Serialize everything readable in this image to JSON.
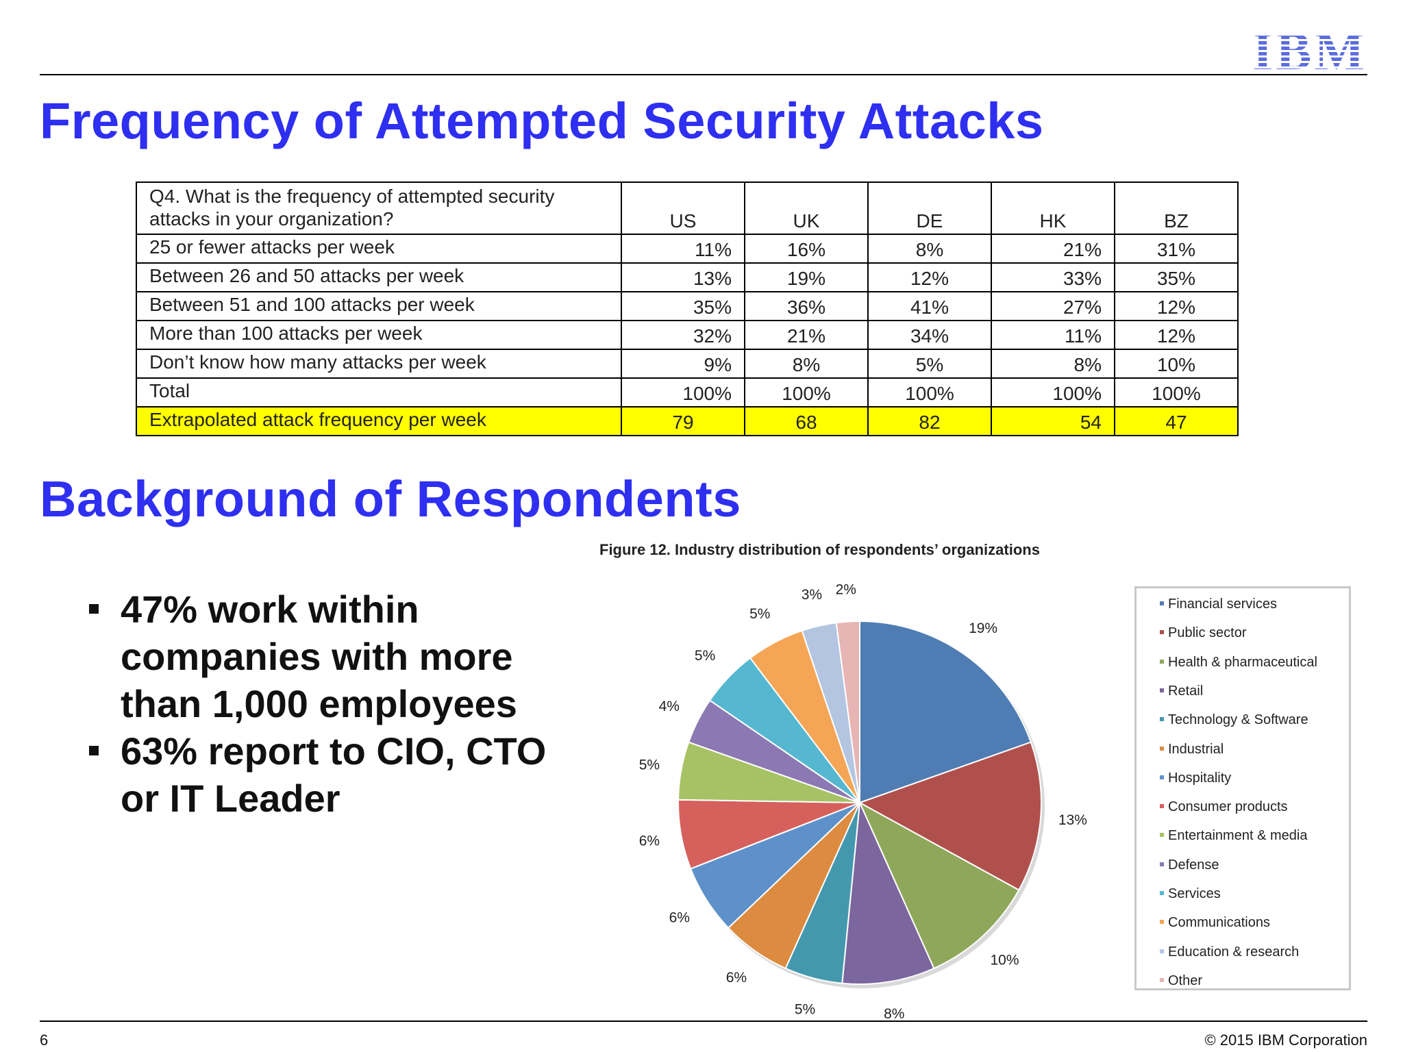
{
  "logo": "IBM",
  "title1": "Frequency of Attempted Security Attacks",
  "table": {
    "question": "Q4. What is the frequency of attempted security attacks in your organization?",
    "columns": [
      "US",
      "UK",
      "DE",
      "HK",
      "BZ"
    ],
    "rows": [
      {
        "label": "25 or fewer attacks per week",
        "values": [
          "11%",
          "16%",
          "8%",
          "21%",
          "31%"
        ]
      },
      {
        "label": "Between 26 and 50 attacks per week",
        "values": [
          "13%",
          "19%",
          "12%",
          "33%",
          "35%"
        ]
      },
      {
        "label": "Between 51 and 100 attacks per week",
        "values": [
          "35%",
          "36%",
          "41%",
          "27%",
          "12%"
        ]
      },
      {
        "label": "More than 100 attacks per week",
        "values": [
          "32%",
          "21%",
          "34%",
          "11%",
          "12%"
        ]
      },
      {
        "label": "Don’t know how many attacks per week",
        "values": [
          "9%",
          "8%",
          "5%",
          "8%",
          "10%"
        ]
      },
      {
        "label": "Total",
        "values": [
          "100%",
          "100%",
          "100%",
          "100%",
          "100%"
        ]
      }
    ],
    "highlight_row": {
      "label": "Extrapolated attack frequency per week",
      "values": [
        "79",
        "68",
        "82",
        "54",
        "47"
      ]
    },
    "highlight_color": "#ffff00"
  },
  "title2": "Background of Respondents",
  "bullets": [
    "47% work within companies with more than 1,000 employees",
    "63% report to CIO, CTO or IT Leader"
  ],
  "chart_data": {
    "type": "pie",
    "title": "Figure 12. Industry distribution of respondents’ organizations",
    "categories": [
      "Financial services",
      "Public sector",
      "Health & pharmaceutical",
      "Retail",
      "Technology & Software",
      "Industrial",
      "Hospitality",
      "Consumer products",
      "Entertainment & media",
      "Defense",
      "Services",
      "Communications",
      "Education & research",
      "Other"
    ],
    "values": [
      19,
      13,
      10,
      8,
      5,
      6,
      6,
      6,
      5,
      4,
      5,
      5,
      3,
      2
    ],
    "labels": [
      "19%",
      "13%",
      "10%",
      "8%",
      "5%",
      "6%",
      "6%",
      "6%",
      "5%",
      "4%",
      "5%",
      "5%",
      "3%",
      "2%"
    ],
    "colors": [
      "#4f7db3",
      "#b0504c",
      "#8fa75a",
      "#7b669e",
      "#4498ae",
      "#dc8b40",
      "#5e91c9",
      "#d6605c",
      "#a6c264",
      "#8c79b3",
      "#55b7d0",
      "#f4a656",
      "#b3c5e1",
      "#e6b5b4"
    ],
    "legend_position": "right"
  },
  "footer": {
    "page_number": "6",
    "copyright": "© 2015 IBM Corporation"
  }
}
